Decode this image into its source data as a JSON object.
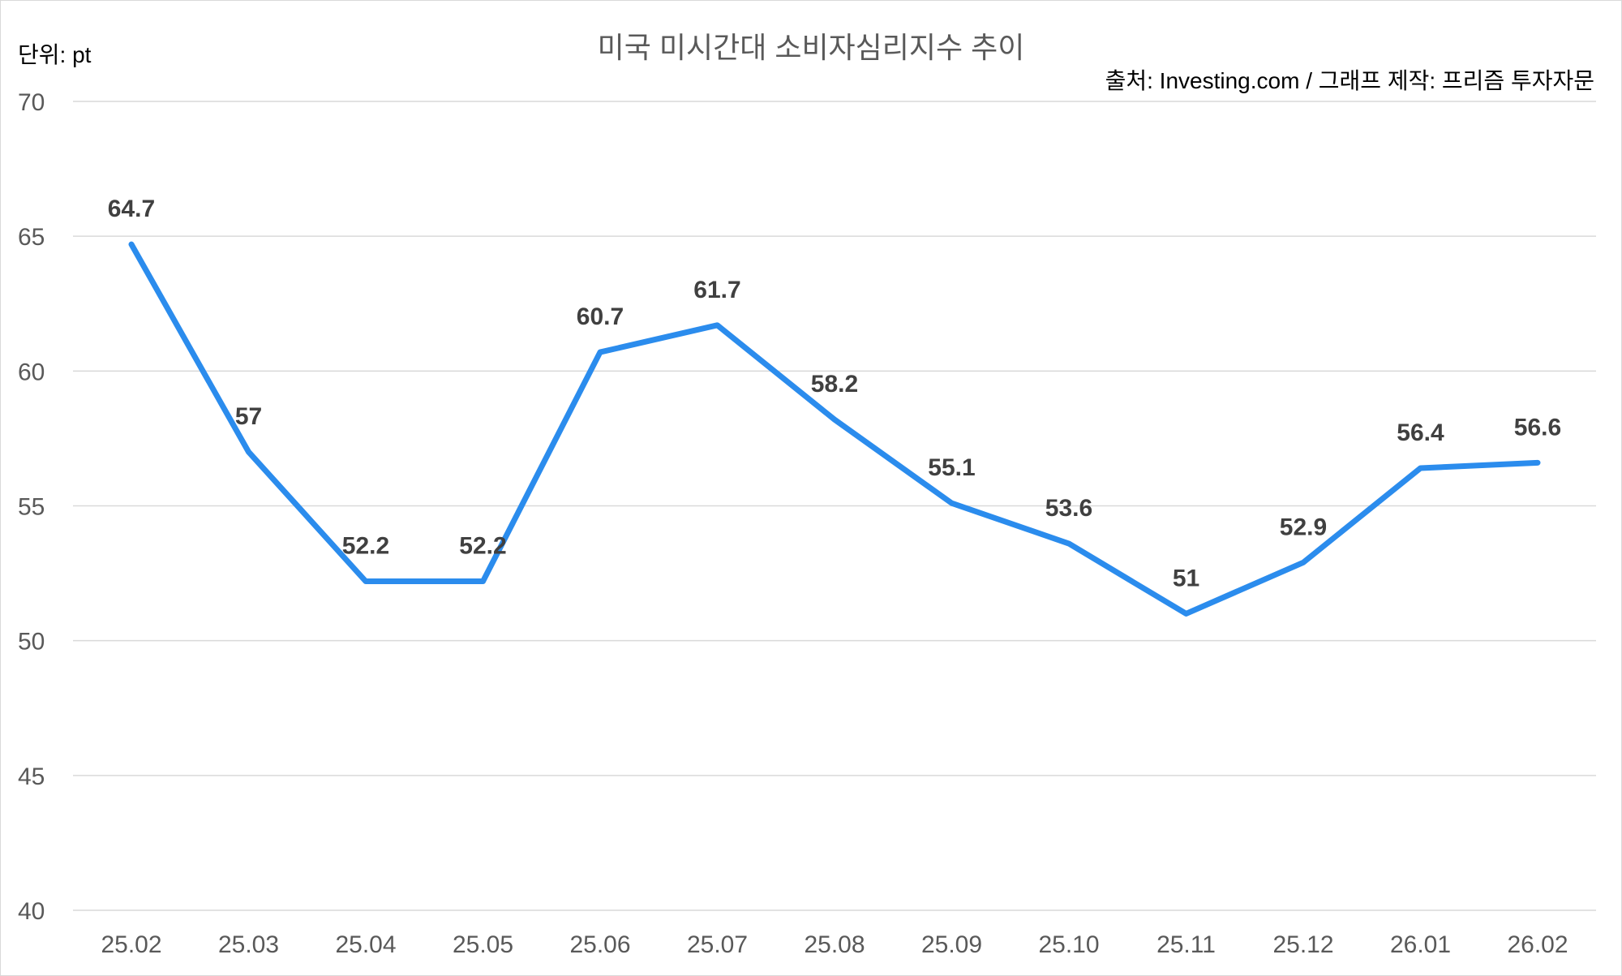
{
  "chart_data": {
    "type": "line",
    "title": "미국 미시간대 소비자심리지수 추이",
    "unit_label": "단위: pt",
    "source": "출처: Investing.com / 그래프 제작: 프리즘 투자자문",
    "categories": [
      "25.02",
      "25.03",
      "25.04",
      "25.05",
      "25.06",
      "25.07",
      "25.08",
      "25.09",
      "25.10",
      "25.11",
      "25.12",
      "26.01",
      "26.02"
    ],
    "series": [
      {
        "values": [
          64.7,
          57,
          52.2,
          52.2,
          60.7,
          61.7,
          58.2,
          55.1,
          53.6,
          51,
          52.9,
          56.4,
          56.6
        ],
        "labels": [
          "64.7",
          "57",
          "52.2",
          "52.2",
          "60.7",
          "61.7",
          "58.2",
          "55.1",
          "53.6",
          "51",
          "52.9",
          "56.4",
          "56.6"
        ],
        "color": "#2b8ced"
      }
    ],
    "ylim": [
      40,
      70
    ],
    "yticks": [
      40,
      45,
      50,
      55,
      60,
      65,
      70
    ],
    "ytick_labels": [
      "40",
      "45",
      "50",
      "55",
      "60",
      "65",
      "70"
    ],
    "grid": true,
    "grid_color": "#d9d9d9"
  }
}
